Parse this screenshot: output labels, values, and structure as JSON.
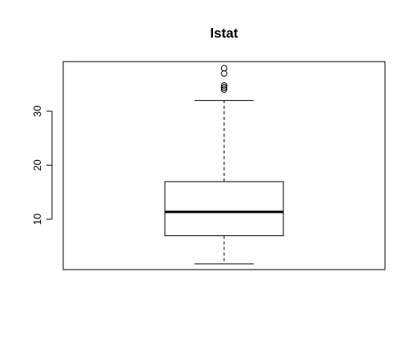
{
  "chart_data": {
    "type": "boxplot",
    "title": "lstat",
    "xlabel": "",
    "ylabel": "",
    "ylim": [
      0.67,
      39.19
    ],
    "yticks": [
      10,
      20,
      30
    ],
    "ytick_labels": [
      "10",
      "20",
      "30"
    ],
    "box": {
      "whisker_low": 1.73,
      "q1": 6.95,
      "median": 11.36,
      "q3": 16.96,
      "whisker_high": 31.99
    },
    "outliers": [
      34.02,
      34.37,
      34.41,
      34.77,
      36.98,
      37.97
    ]
  }
}
